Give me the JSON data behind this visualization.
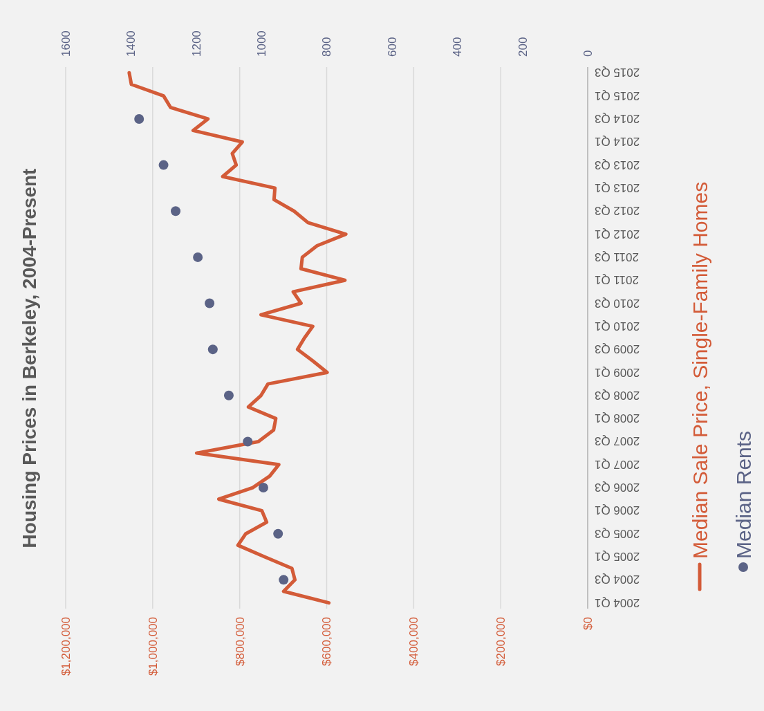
{
  "chart_data": {
    "type": "line",
    "title": "Housing Prices in Berkeley, 2004-Present",
    "orientation": "horizontal",
    "categories": [
      "2015 Q3",
      null,
      "2015 Q1",
      null,
      "2014 Q3",
      null,
      "2014 Q1",
      null,
      "2013 Q3",
      null,
      "2013 Q1",
      null,
      "2012 Q3",
      null,
      "2012 Q1",
      null,
      "2011 Q3",
      null,
      "2011 Q1",
      null,
      "2010 Q3",
      null,
      "2010 Q1",
      null,
      "2009 Q3",
      null,
      "2009 Q1",
      null,
      "2008 Q3",
      null,
      "2008 Q1",
      null,
      "2007 Q3",
      null,
      "2007 Q1",
      null,
      "2006 Q3",
      null,
      "2006 Q1",
      null,
      "2005 Q3",
      null,
      "2005 Q1",
      null,
      "2004 Q3",
      null,
      "2004 Q1"
    ],
    "series": [
      {
        "name": "Median Sale Price, Single-Family Homes",
        "color": "#d35b38",
        "values": [
          1054000,
          1049000,
          975000,
          959000,
          873000,
          907000,
          794000,
          817000,
          808000,
          839000,
          719000,
          721000,
          675000,
          643000,
          556000,
          622000,
          656000,
          659000,
          558000,
          677000,
          659000,
          751000,
          632000,
          651000,
          667000,
          632000,
          599000,
          735000,
          751000,
          780000,
          717000,
          722000,
          757000,
          899000,
          710000,
          731000,
          770000,
          848000,
          749000,
          738000,
          786000,
          804000,
          743000,
          680000,
          673000,
          699000,
          595000
        ]
      },
      {
        "name": "Median Rents",
        "type": "scatter",
        "axis": "x2",
        "marker": "circle",
        "color": "#5b6386",
        "values": [
          null,
          null,
          null,
          null,
          1375,
          null,
          null,
          null,
          1300,
          null,
          null,
          null,
          1263,
          null,
          null,
          null,
          1195,
          null,
          null,
          null,
          1159,
          null,
          null,
          null,
          1149,
          null,
          null,
          null,
          1100,
          null,
          null,
          null,
          1042,
          null,
          null,
          null,
          994,
          null,
          null,
          null,
          949,
          null,
          null,
          null,
          932,
          null,
          null
        ]
      }
    ],
    "xlim": [
      1200000,
      0
    ],
    "xticks": [
      {
        "value": 1200000,
        "label": "$1,200,000"
      },
      {
        "value": 1000000,
        "label": "$1,000,000"
      },
      {
        "value": 800000,
        "label": "$800,000"
      },
      {
        "value": 600000,
        "label": "$600,000"
      },
      {
        "value": 400000,
        "label": "$400,000"
      },
      {
        "value": 200000,
        "label": "$200,000"
      },
      {
        "value": 0,
        "label": "$0"
      }
    ],
    "x2lim": [
      1600,
      0
    ],
    "x2ticks": [
      1600,
      1400,
      1200,
      1000,
      800,
      600,
      400,
      200,
      0
    ],
    "grid": "x",
    "legend": "bottom"
  }
}
